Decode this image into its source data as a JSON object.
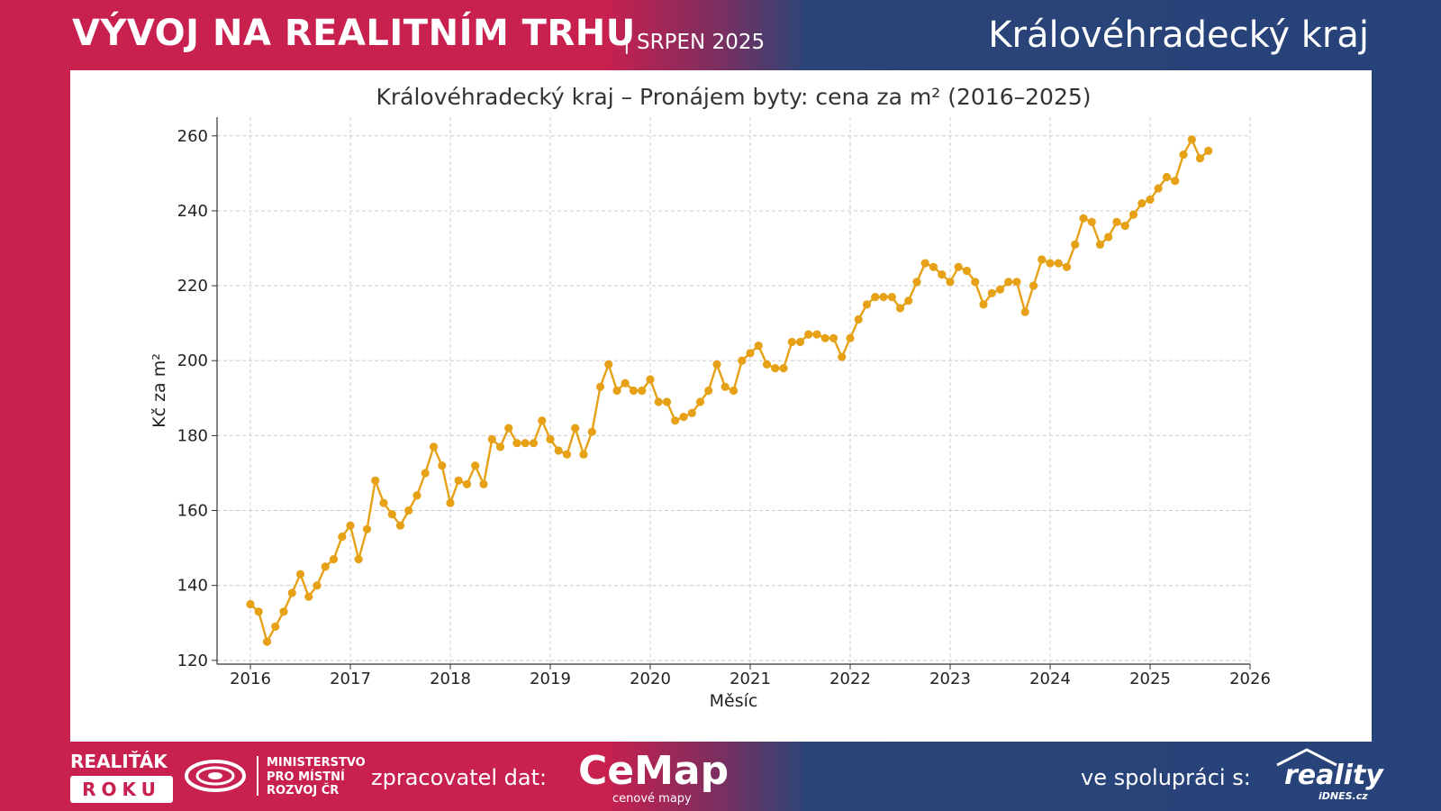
{
  "header": {
    "title": "VÝVOJ NA REALITNÍM TRHU",
    "subtitle": "| SRPEN 2025",
    "region": "Královéhradecký kraj"
  },
  "footer": {
    "realitak_top": "REALIŤÁK",
    "realitak_bottom": "ROKU",
    "ministry_lines": [
      "MINISTERSTVO",
      "PRO MÍSTNÍ",
      "ROZVOJ ČR"
    ],
    "processor_label": "zpracovatel dat:",
    "cemap_name": "CeMap",
    "cemap_tagline": "cenové mapy",
    "partner_label": "ve spolupráci s:",
    "reality_name": "reality",
    "reality_sub": "iDNES.cz"
  },
  "colors": {
    "brand_red": "#c8204f",
    "brand_blue": "#27427a",
    "series": "#e6a117"
  },
  "chart_data": {
    "type": "line",
    "title": "Královéhradecký kraj – Pronájem byty: cena za m² (2016–2025)",
    "xlabel": "Měsíc",
    "ylabel": "Kč za m²",
    "xlim": [
      "2015-09",
      "2026-01"
    ],
    "ylim": [
      119,
      265
    ],
    "x_ticks": [
      "2016",
      "2017",
      "2018",
      "2019",
      "2020",
      "2021",
      "2022",
      "2023",
      "2024",
      "2025",
      "2026"
    ],
    "y_ticks": [
      120,
      140,
      160,
      180,
      200,
      220,
      240,
      260
    ],
    "grid": true,
    "x_start": "2016-01",
    "x_step": "1 month",
    "series": [
      {
        "values": [
          135,
          133,
          125,
          129,
          133,
          138,
          143,
          137,
          140,
          145,
          147,
          153,
          156,
          147,
          155,
          168,
          162,
          159,
          156,
          160,
          164,
          170,
          177,
          172,
          162,
          168,
          167,
          172,
          167,
          179,
          177,
          182,
          178,
          178,
          178,
          184,
          179,
          176,
          175,
          182,
          175,
          181,
          193,
          199,
          192,
          194,
          192,
          192,
          195,
          189,
          189,
          184,
          185,
          186,
          189,
          192,
          199,
          193,
          192,
          200,
          202,
          204,
          199,
          198,
          198,
          205,
          205,
          207,
          207,
          206,
          206,
          201,
          206,
          211,
          215,
          217,
          217,
          217,
          214,
          216,
          221,
          226,
          225,
          223,
          221,
          225,
          224,
          221,
          215,
          218,
          219,
          221,
          221,
          213,
          220,
          227,
          226,
          226,
          225,
          231,
          238,
          237,
          231,
          233,
          237,
          236,
          239,
          242,
          243,
          246,
          249,
          248,
          255,
          259,
          254,
          256
        ]
      }
    ]
  }
}
